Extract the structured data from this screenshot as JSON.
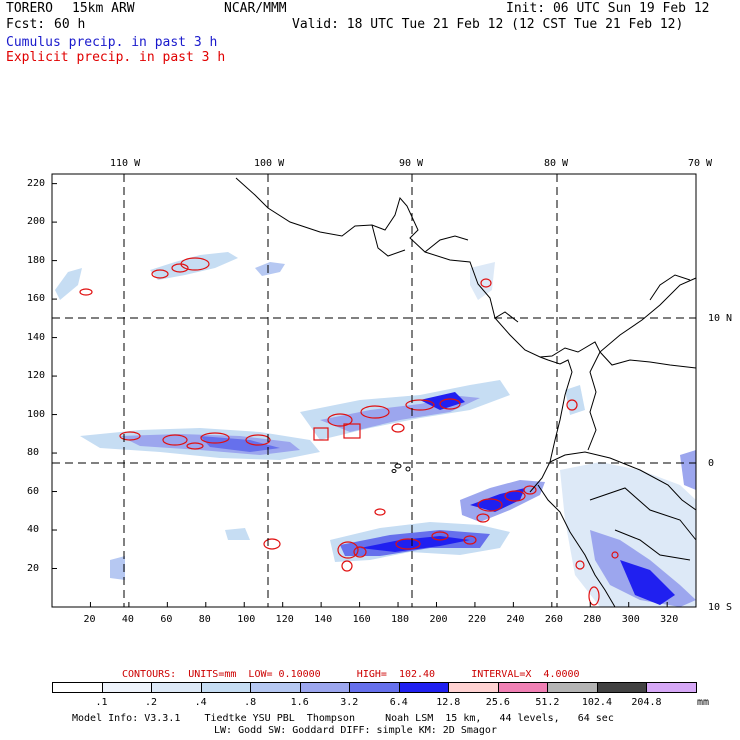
{
  "header": {
    "model": "TORERO",
    "resolution": "15km ARW",
    "org": "NCAR/MMM",
    "init": "Init: 06 UTC Sun 19 Feb 12",
    "fcst_label": "Fcst:",
    "fcst_value": "60 h",
    "valid": "Valid: 18 UTC Tue 21 Feb 12 (12 CST Tue 21 Feb 12)",
    "legend1": "Cumulus precip. in past 3 h",
    "legend2": "Explicit precip. in past 3 h",
    "legend1_color": "#1a1acc",
    "legend2_color": "#e00000"
  },
  "map": {
    "lon_labels": [
      "110 W",
      "100 W",
      "90 W",
      "80 W",
      "70 W"
    ],
    "lat_labels": [
      "10 N",
      "0",
      "10 S"
    ],
    "y_ticks": [
      "220",
      "200",
      "180",
      "160",
      "140",
      "120",
      "100",
      "80",
      "60",
      "40",
      "20"
    ],
    "x_ticks": [
      "20",
      "40",
      "60",
      "80",
      "100",
      "120",
      "140",
      "160",
      "180",
      "200",
      "220",
      "240",
      "260",
      "280",
      "300",
      "320"
    ],
    "x_range": [
      0,
      335
    ],
    "y_range": [
      0,
      225
    ]
  },
  "contours": {
    "text": "CONTOURS:  UNITS=mm  LOW= 0.10000      HIGH=  102.40      INTERVAL=X  4.0000",
    "color": "#cc0000"
  },
  "colorbar": {
    "labels": [
      ".1",
      ".2",
      ".4",
      ".8",
      "1.6",
      "3.2",
      "6.4",
      "12.8",
      "25.6",
      "51.2",
      "102.4",
      "204.8"
    ],
    "unit": "mm",
    "colors": [
      "#ffffff",
      "#eef3fb",
      "#dde9f7",
      "#c6ddf3",
      "#b6c8f2",
      "#9ca6ee",
      "#6670ec",
      "#2020f0",
      "#ffd2d2",
      "#f080b4",
      "#b4b4b4",
      "#424242",
      "#d6a8f6"
    ]
  },
  "footer": {
    "line1": "Model Info: V3.3.1    Tiedtke YSU PBL  Thompson     Noah LSM  15 km,   44 levels,   64 sec",
    "line2": "LW: Godd SW: Goddard DIFF: simple KM: 2D Smagor"
  }
}
